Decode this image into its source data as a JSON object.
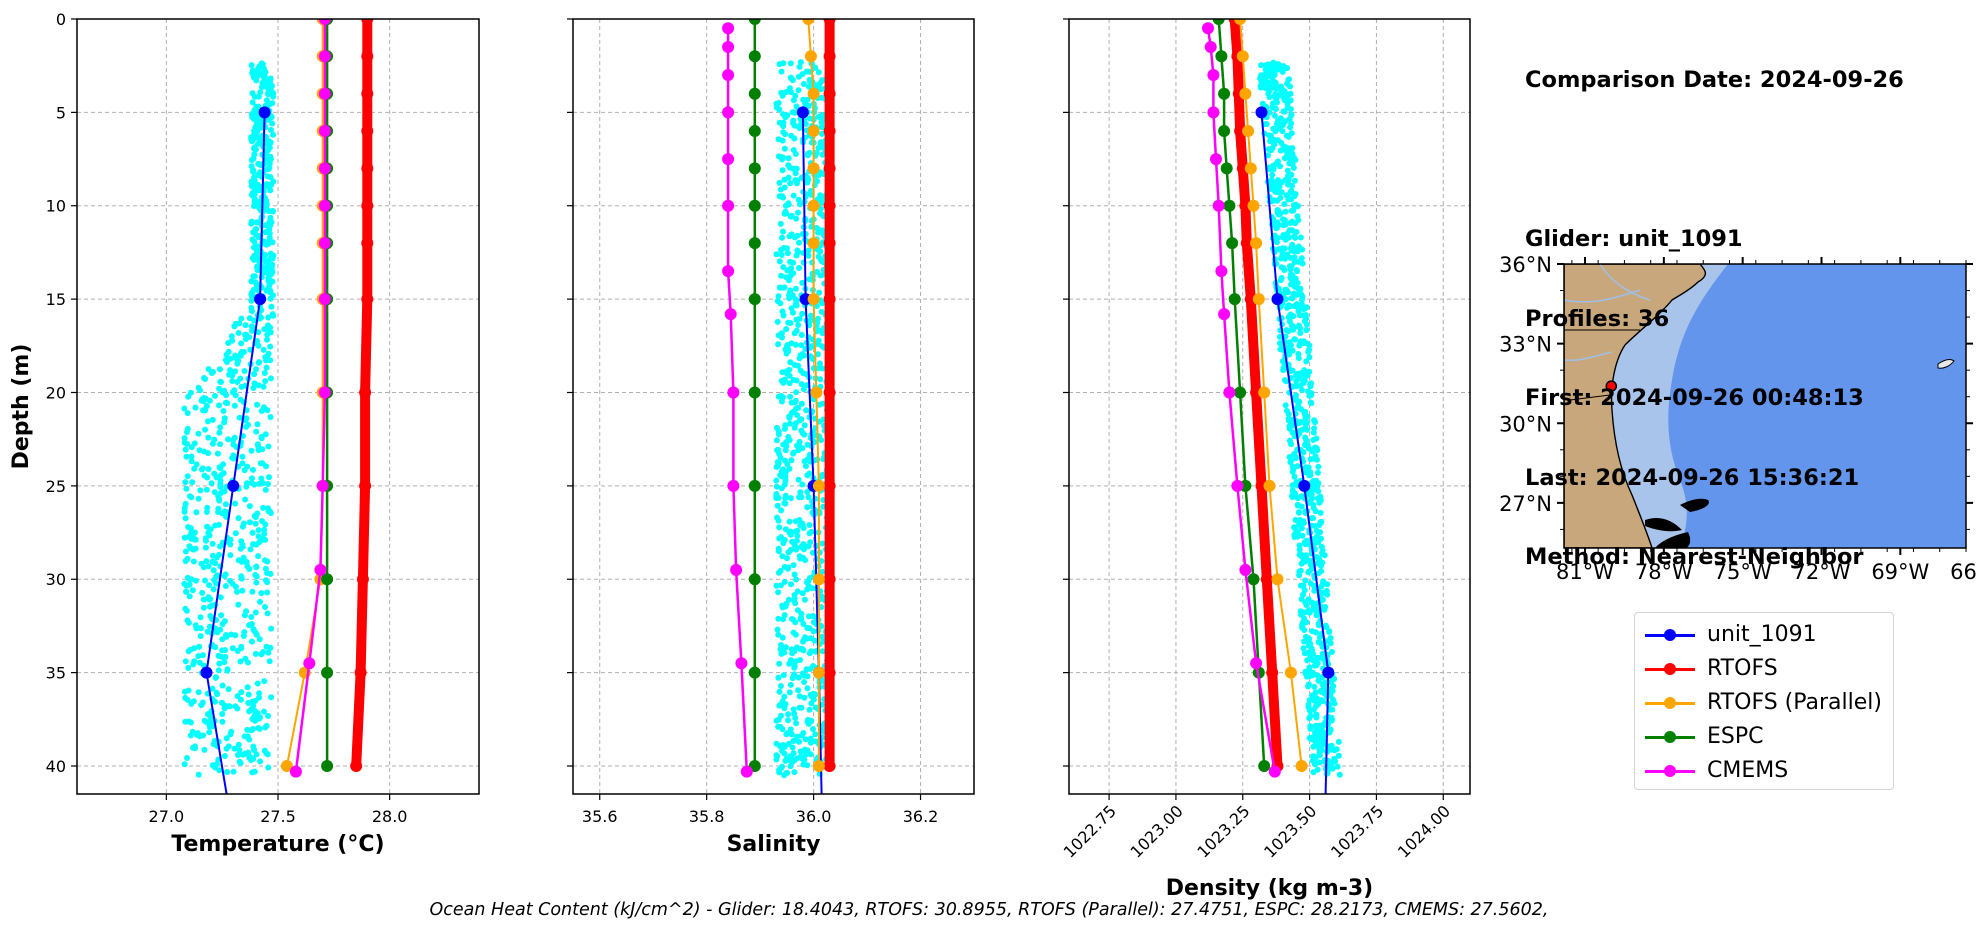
{
  "info": {
    "comparison_date": "Comparison Date: 2024-09-26",
    "glider": "Glider: unit_1091",
    "profiles": "Profiles: 36",
    "first": "First: 2024-09-26 00:48:13",
    "last": "Last: 2024-09-26 15:36:21",
    "method": "Method: Nearest-Neighbor"
  },
  "footer": "Ocean Heat Content (kJ/cm^2) - Glider: 18.4043,  RTOFS: 30.8955,  RTOFS (Parallel): 27.4751,  ESPC: 28.2173,  CMEMS: 27.5602,",
  "legend": [
    {
      "name": "unit_1091",
      "color": "#0000ff"
    },
    {
      "name": "RTOFS",
      "color": "#ff0000"
    },
    {
      "name": "RTOFS (Parallel)",
      "color": "#ffa500"
    },
    {
      "name": "ESPC",
      "color": "#008000"
    },
    {
      "name": "CMEMS",
      "color": "#ff00ff"
    }
  ],
  "chart_data": [
    {
      "type": "line",
      "xlabel": "Temperature (°C)",
      "ylabel": "Depth (m)",
      "xlim": [
        26.6,
        28.4
      ],
      "ylim": [
        41.5,
        0
      ],
      "xticks": [
        "27.0",
        "27.5",
        "28.0"
      ],
      "yticks": [
        "0",
        "5",
        "10",
        "15",
        "20",
        "25",
        "30",
        "35",
        "40"
      ],
      "grid": true,
      "series": [
        {
          "name": "unit_1091",
          "color": "#0000ff",
          "depth": [
            5,
            15,
            25,
            35,
            41.5
          ],
          "values": [
            27.44,
            27.42,
            27.3,
            27.18,
            27.27
          ]
        },
        {
          "name": "RTOFS",
          "color": "#ff0000",
          "depth": [
            0,
            2,
            4,
            6,
            8,
            10,
            12,
            15,
            20,
            25,
            30,
            35,
            40
          ],
          "values": [
            27.9,
            27.9,
            27.9,
            27.9,
            27.9,
            27.9,
            27.9,
            27.9,
            27.89,
            27.89,
            27.88,
            27.87,
            27.85
          ]
        },
        {
          "name": "RTOFS (Parallel)",
          "color": "#ffa500",
          "depth": [
            0,
            2,
            4,
            6,
            8,
            10,
            12,
            15,
            20,
            25,
            30,
            35,
            40
          ],
          "values": [
            27.7,
            27.7,
            27.7,
            27.7,
            27.7,
            27.7,
            27.7,
            27.7,
            27.7,
            27.7,
            27.69,
            27.62,
            27.54
          ]
        },
        {
          "name": "ESPC",
          "color": "#008000",
          "depth": [
            0,
            2,
            4,
            6,
            8,
            10,
            12,
            15,
            20,
            25,
            30,
            35,
            40
          ],
          "values": [
            27.72,
            27.72,
            27.72,
            27.72,
            27.72,
            27.72,
            27.72,
            27.72,
            27.72,
            27.72,
            27.72,
            27.72,
            27.72
          ]
        },
        {
          "name": "CMEMS",
          "color": "#ff00ff",
          "depth": [
            0,
            2,
            4,
            6,
            8,
            10,
            12,
            15,
            20,
            25,
            29.5,
            34.5,
            40.3
          ],
          "values": [
            27.71,
            27.71,
            27.71,
            27.71,
            27.71,
            27.71,
            27.71,
            27.71,
            27.71,
            27.7,
            27.69,
            27.64,
            27.58
          ]
        }
      ],
      "scatter": {
        "name": "glider profiles",
        "color": "#00ffff",
        "depth_range": [
          2.3,
          40.5
        ],
        "envelope": "upper 2–16 m: 27.38–27.48; 16–40 m: 27.08–27.48"
      }
    },
    {
      "type": "line",
      "xlabel": "Salinity",
      "ylabel": "",
      "xlim": [
        35.55,
        36.3
      ],
      "ylim": [
        41.5,
        0
      ],
      "xticks": [
        "35.6",
        "35.8",
        "36.0",
        "36.2"
      ],
      "grid": true,
      "series": [
        {
          "name": "unit_1091",
          "color": "#0000ff",
          "depth": [
            5,
            15,
            25,
            35,
            41.5
          ],
          "values": [
            35.98,
            35.985,
            36.0,
            36.01,
            36.015
          ]
        },
        {
          "name": "RTOFS",
          "color": "#ff0000",
          "depth": [
            0,
            2,
            4,
            6,
            8,
            10,
            12,
            15,
            20,
            25,
            30,
            35,
            40
          ],
          "values": [
            36.03,
            36.03,
            36.03,
            36.03,
            36.03,
            36.03,
            36.03,
            36.03,
            36.03,
            36.03,
            36.03,
            36.03,
            36.03
          ]
        },
        {
          "name": "RTOFS (Parallel)",
          "color": "#ffa500",
          "depth": [
            0,
            2,
            4,
            6,
            8,
            10,
            12,
            15,
            20,
            25,
            30,
            35,
            40
          ],
          "values": [
            35.99,
            35.995,
            36.0,
            36.0,
            36.0,
            36.0,
            36.0,
            36.0,
            36.005,
            36.01,
            36.01,
            36.01,
            36.01
          ]
        },
        {
          "name": "ESPC",
          "color": "#008000",
          "depth": [
            0,
            2,
            4,
            6,
            8,
            10,
            12,
            15,
            20,
            25,
            30,
            35,
            40
          ],
          "values": [
            35.89,
            35.89,
            35.89,
            35.89,
            35.89,
            35.89,
            35.89,
            35.89,
            35.89,
            35.89,
            35.89,
            35.89,
            35.89
          ]
        },
        {
          "name": "CMEMS",
          "color": "#ff00ff",
          "depth": [
            0.5,
            1.5,
            3,
            5,
            7.5,
            10,
            13.5,
            15.8,
            20,
            25,
            29.5,
            34.5,
            40.3
          ],
          "values": [
            35.84,
            35.84,
            35.84,
            35.84,
            35.84,
            35.84,
            35.84,
            35.845,
            35.85,
            35.85,
            35.855,
            35.865,
            35.875
          ]
        }
      ],
      "scatter": {
        "name": "glider profiles",
        "color": "#00ffff",
        "depth_range": [
          2.3,
          40.5
        ],
        "envelope": "35.93–36.03"
      }
    },
    {
      "type": "line",
      "xlabel": "Density (kg m-3)",
      "ylabel": "",
      "xlim": [
        1022.6,
        1024.1
      ],
      "ylim": [
        41.5,
        0
      ],
      "xticks": [
        "1022.75",
        "1023.00",
        "1023.25",
        "1023.50",
        "1023.75",
        "1024.00"
      ],
      "grid": true,
      "series": [
        {
          "name": "unit_1091",
          "color": "#0000ff",
          "depth": [
            5,
            15,
            25,
            35,
            41.5
          ],
          "values": [
            1023.32,
            1023.38,
            1023.48,
            1023.57,
            1023.56
          ]
        },
        {
          "name": "RTOFS",
          "color": "#ff0000",
          "depth": [
            0,
            2,
            4,
            6,
            8,
            10,
            12,
            15,
            20,
            25,
            30,
            35,
            40
          ],
          "values": [
            1023.22,
            1023.23,
            1023.235,
            1023.24,
            1023.25,
            1023.26,
            1023.265,
            1023.28,
            1023.3,
            1023.32,
            1023.34,
            1023.36,
            1023.38
          ]
        },
        {
          "name": "RTOFS (Parallel)",
          "color": "#ffa500",
          "depth": [
            0,
            2,
            4,
            6,
            8,
            10,
            12,
            15,
            20,
            25,
            30,
            35,
            40
          ],
          "values": [
            1023.24,
            1023.25,
            1023.26,
            1023.27,
            1023.28,
            1023.29,
            1023.3,
            1023.31,
            1023.33,
            1023.35,
            1023.38,
            1023.43,
            1023.47
          ]
        },
        {
          "name": "ESPC",
          "color": "#008000",
          "depth": [
            0,
            2,
            4,
            6,
            8,
            10,
            12,
            15,
            20,
            25,
            30,
            35,
            40
          ],
          "values": [
            1023.16,
            1023.17,
            1023.18,
            1023.18,
            1023.19,
            1023.2,
            1023.21,
            1023.22,
            1023.24,
            1023.26,
            1023.29,
            1023.31,
            1023.33
          ]
        },
        {
          "name": "CMEMS",
          "color": "#ff00ff",
          "depth": [
            0.5,
            1.5,
            3,
            5,
            7.5,
            10,
            13.5,
            15.8,
            20,
            25,
            29.5,
            34.5,
            40.3
          ],
          "values": [
            1023.12,
            1023.13,
            1023.14,
            1023.14,
            1023.15,
            1023.16,
            1023.17,
            1023.18,
            1023.2,
            1023.23,
            1023.26,
            1023.3,
            1023.37
          ]
        }
      ],
      "scatter": {
        "name": "glider profiles",
        "color": "#00ffff",
        "depth_range": [
          2.3,
          40.5
        ],
        "envelope": "shifts from 1023.30–1023.40 at 3 m to 1023.50–1023.62 at 40 m"
      }
    },
    {
      "type": "map",
      "lat_ticks": [
        "36°N",
        "33°N",
        "30°N",
        "27°N"
      ],
      "lon_ticks": [
        "81°W",
        "78°W",
        "75°W",
        "72°W",
        "69°W",
        "66°W"
      ],
      "lat_range": [
        25.3,
        36
      ],
      "lon_range": [
        -81.8,
        -66.5
      ],
      "marker": {
        "lat": 31.4,
        "lon": -80.0,
        "color": "#ff0000"
      },
      "land_color": "#c9a77c",
      "shelf_color": "#a9c4ea",
      "ocean_color": "#6495ed"
    }
  ]
}
